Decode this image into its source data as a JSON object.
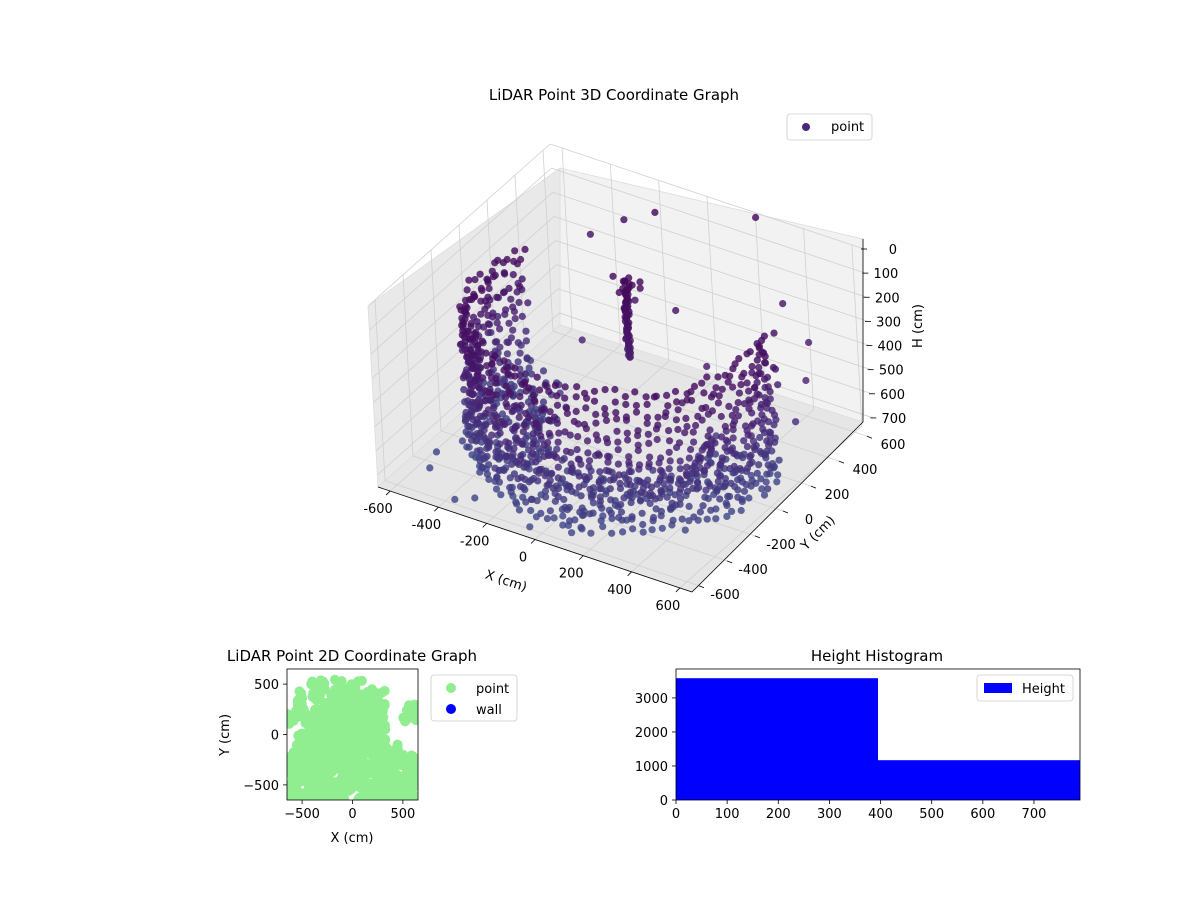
{
  "chart_data": [
    {
      "type": "scatter",
      "dims": 3,
      "title": "LiDAR Point 3D Coordinate Graph",
      "xlabel": "X (cm)",
      "ylabel": "Y (cm)",
      "zlabel": "H (cm)",
      "xlim": [
        -650,
        650
      ],
      "ylim": [
        -650,
        650
      ],
      "zlim": [
        0,
        750
      ],
      "z_inverted": true,
      "xticks": [
        "-600",
        "-400",
        "-200",
        "0",
        "200",
        "400",
        "600"
      ],
      "yticks": [
        "-600",
        "-400",
        "-200",
        "0",
        "200",
        "400",
        "600"
      ],
      "zticks": [
        "0",
        "100",
        "200",
        "300",
        "400",
        "500",
        "600",
        "700"
      ],
      "grid": true,
      "legend": {
        "position": "top-right",
        "entries": [
          "point"
        ]
      },
      "colormap": "viridis",
      "color_by": "height",
      "series": [
        {
          "name": "point",
          "color": "#482878",
          "shape": "cylindrical wall of points with a central column",
          "wall": {
            "radius": 550,
            "angle_start": -200,
            "angle_end": 20,
            "h_min": 150,
            "h_max": 720
          },
          "central_column": {
            "x": 0,
            "y": 60,
            "h_min": 20,
            "h_max": 360
          },
          "outliers": [
            [
              -600,
              300,
              380
            ],
            [
              -420,
              520,
              230
            ],
            [
              -300,
              560,
              150
            ],
            [
              -180,
              580,
              90
            ],
            [
              350,
              560,
              280
            ],
            [
              500,
              480,
              350
            ],
            [
              560,
              350,
              420
            ],
            [
              600,
              200,
              500
            ],
            [
              640,
              -80,
              620
            ],
            [
              200,
              650,
              20
            ],
            [
              -80,
              250,
              250
            ],
            [
              120,
              200,
              200
            ],
            [
              -250,
              150,
              420
            ],
            [
              300,
              100,
              320
            ],
            [
              -500,
              -300,
              690
            ],
            [
              -550,
              -400,
              700
            ],
            [
              -520,
              -500,
              705
            ],
            [
              -360,
              -600,
              730
            ],
            [
              -300,
              -560,
              725
            ],
            [
              -150,
              -520,
              720
            ],
            [
              -100,
              -430,
              712
            ],
            [
              -50,
              -600,
              740
            ],
            [
              30,
              -500,
              720
            ],
            [
              70,
              -530,
              730
            ],
            [
              100,
              -560,
              735
            ],
            [
              120,
              -520,
              733
            ]
          ]
        }
      ]
    },
    {
      "type": "scatter",
      "title": "LiDAR Point 2D Coordinate Graph",
      "xlabel": "X (cm)",
      "ylabel": "Y (cm)",
      "xlim": [
        -650,
        650
      ],
      "ylim": [
        -650,
        650
      ],
      "xticks": [
        "−500",
        "0",
        "500"
      ],
      "yticks": [
        "−500",
        "0",
        "500"
      ],
      "grid": false,
      "legend": {
        "position": "outside-right",
        "entries": [
          "point",
          "wall"
        ]
      },
      "series": [
        {
          "name": "point",
          "color": "#90ee90"
        },
        {
          "name": "wall",
          "color": "#0000ff",
          "values": []
        }
      ]
    },
    {
      "type": "bar",
      "title": "Height Histogram",
      "xlim": [
        0,
        790
      ],
      "ylim": [
        0,
        3850
      ],
      "xticks": [
        "0",
        "100",
        "200",
        "300",
        "400",
        "500",
        "600",
        "700"
      ],
      "yticks": [
        "0",
        "1000",
        "2000",
        "3000"
      ],
      "legend": {
        "position": "top-right",
        "entries": [
          "Height"
        ]
      },
      "series": [
        {
          "name": "Height",
          "color": "#0000ff",
          "bins": [
            {
              "start": 0,
              "end": 395,
              "count": 3580
            },
            {
              "start": 395,
              "end": 790,
              "count": 1170
            }
          ]
        }
      ]
    }
  ]
}
